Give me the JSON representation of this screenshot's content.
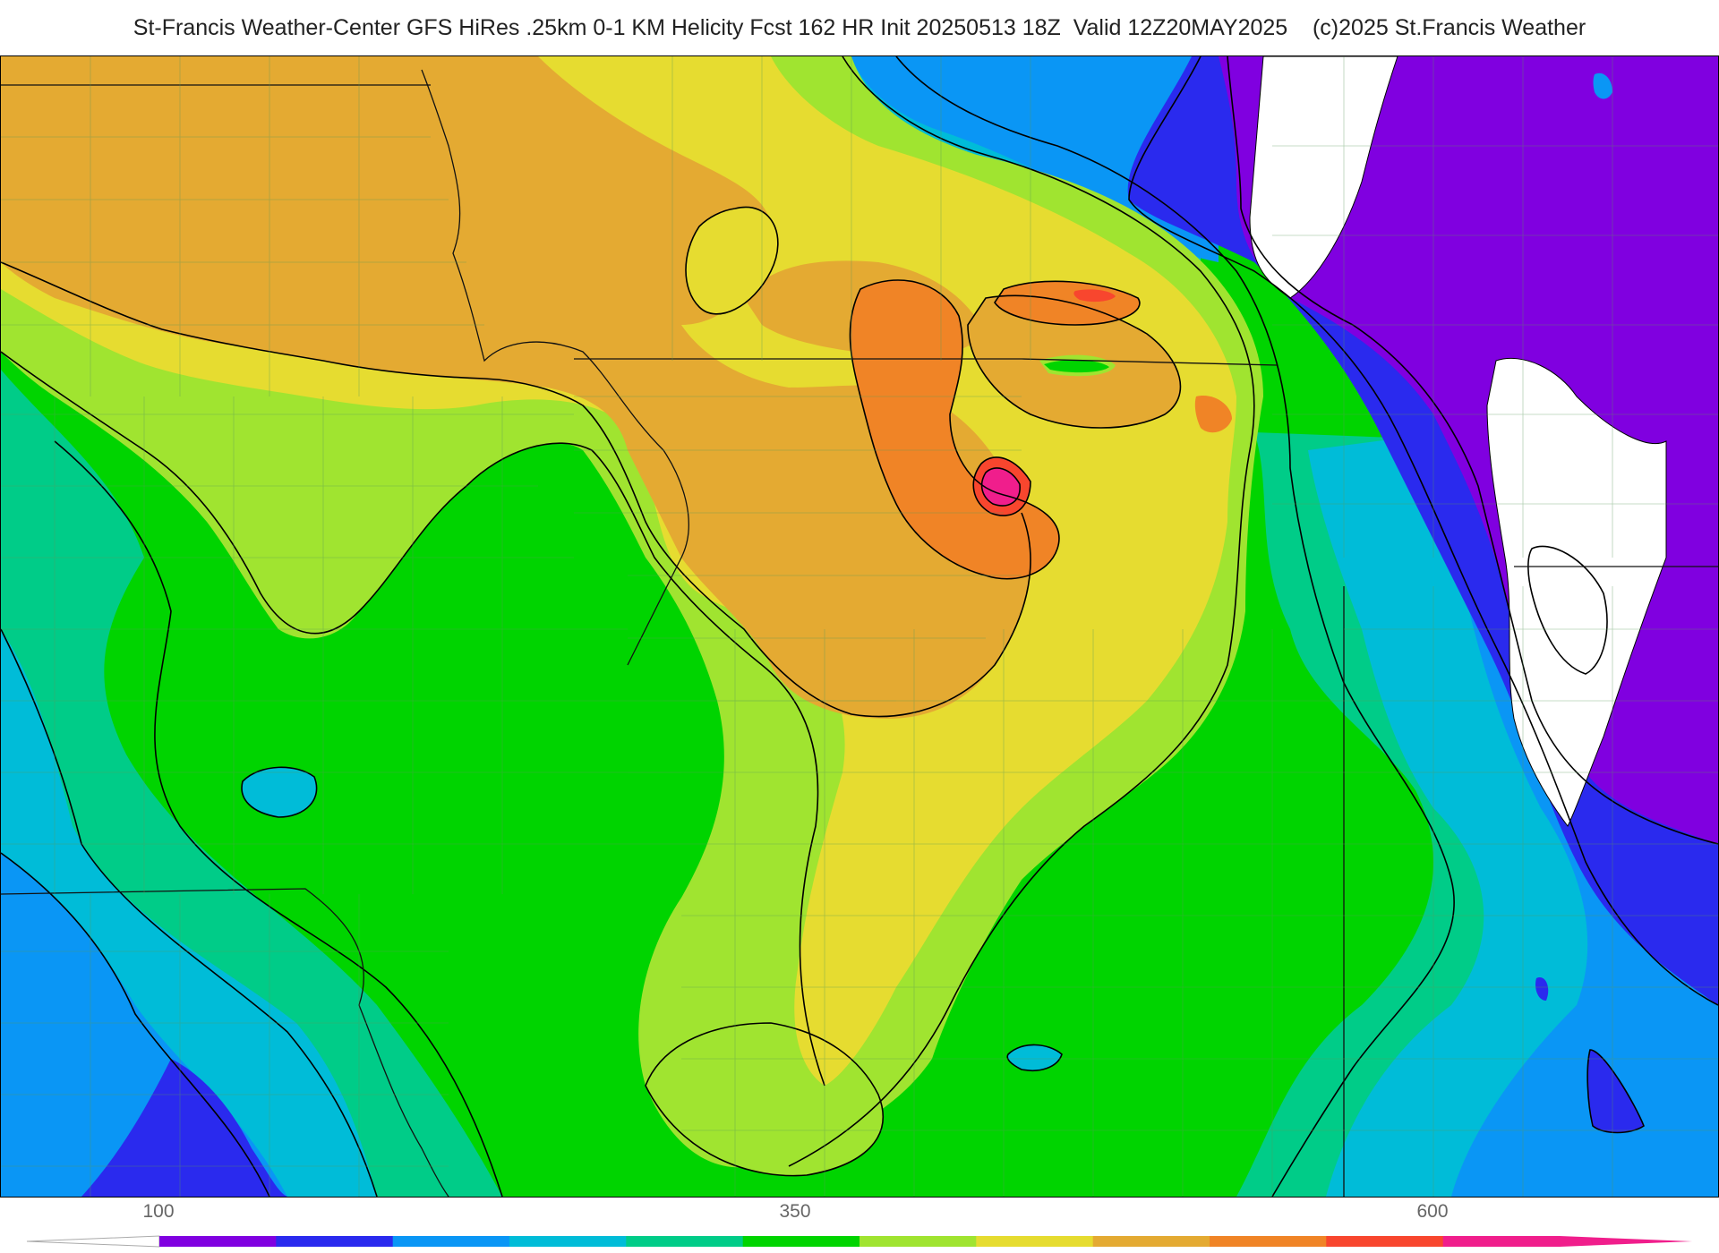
{
  "header": {
    "title": "St-Francis Weather-Center GFS HiRes .25km 0-1 KM Helicity Fcst 162 HR Init 20250513 18Z  Valid 12Z20MAY2025    (c)2025 St.Francis Weather"
  },
  "legend": {
    "tick_labels": [
      "100",
      "350",
      "600"
    ],
    "colors": [
      "#8000e0",
      "#2a2aee",
      "#0a96f5",
      "#00bcd8",
      "#00cc88",
      "#00d400",
      "#a0e430",
      "#e6dc30",
      "#e4aa32",
      "#f08426",
      "#f8462e",
      "#f01e8c"
    ]
  },
  "map": {
    "field": "0-1 KM Helicity",
    "colors": {
      "purple": "#8000e0",
      "deep_blue": "#2a2aee",
      "blue": "#0a96f5",
      "cyan": "#00bcd8",
      "teal_green": "#00cc88",
      "green": "#00d400",
      "light_green": "#a0e430",
      "yellow": "#e6dc30",
      "gold": "#e4aa32",
      "orange": "#f08426",
      "red": "#f8462e",
      "magenta": "#f01e8c",
      "no_data": "#ffffff"
    }
  }
}
